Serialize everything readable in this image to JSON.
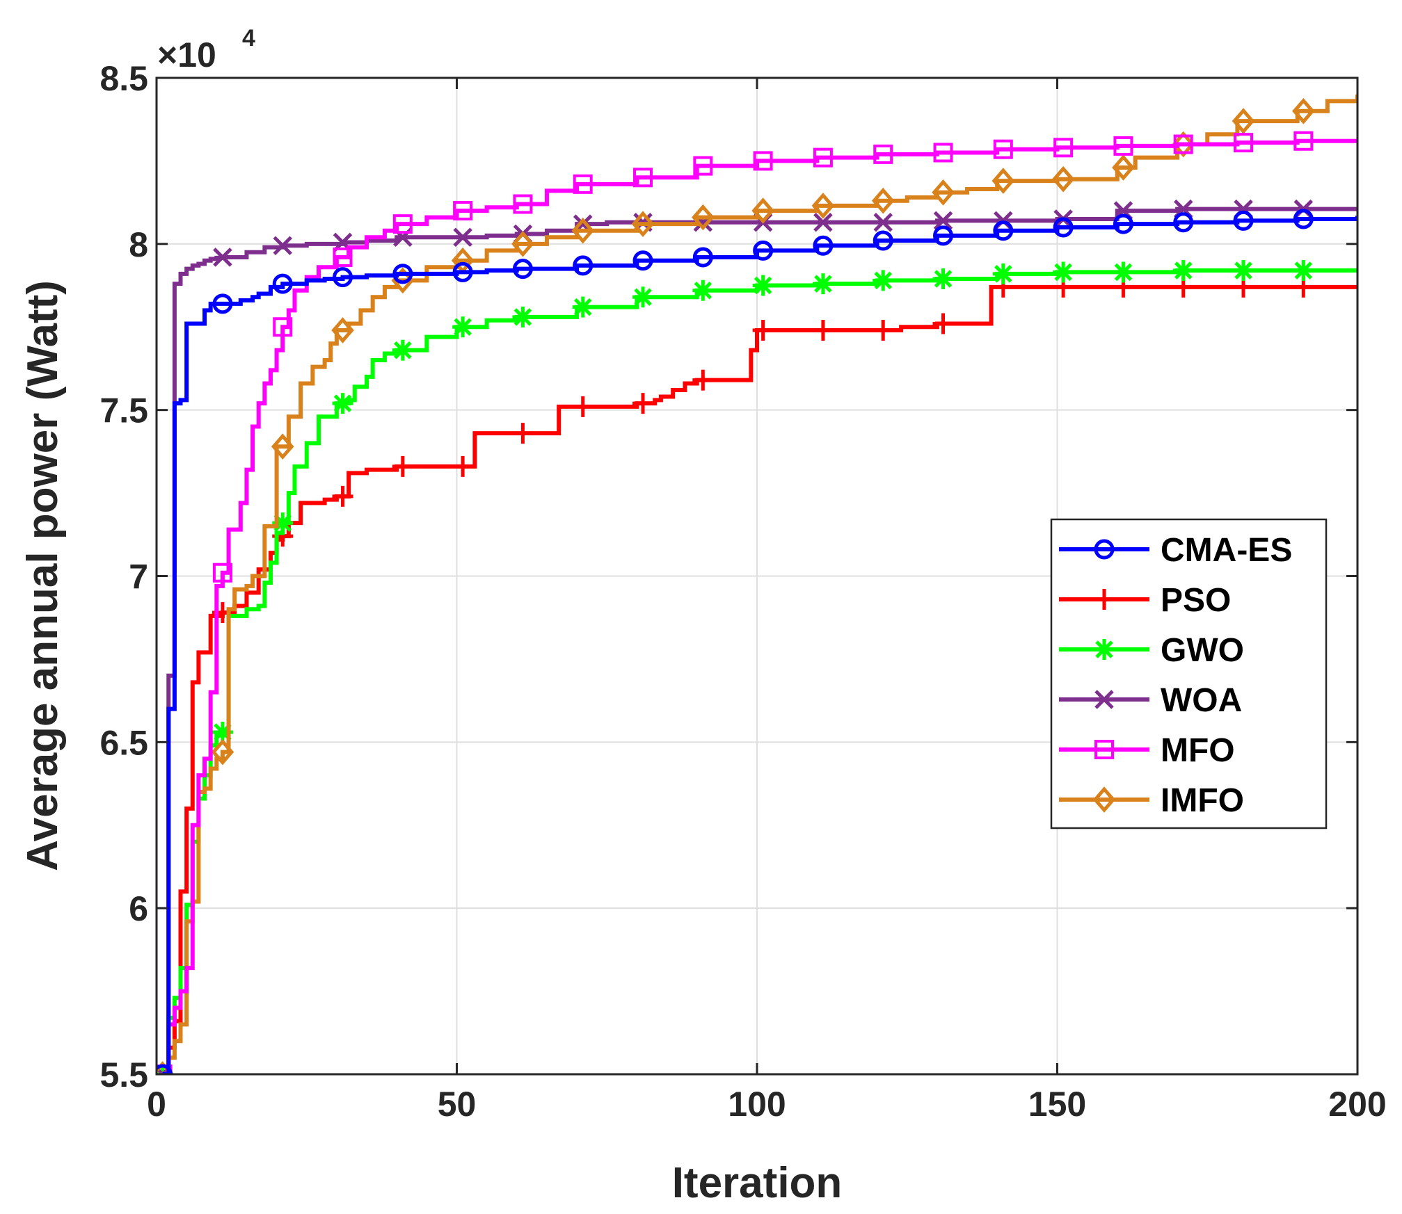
{
  "chart_data": {
    "type": "line",
    "title": "",
    "xlabel": "Iteration",
    "ylabel": "Average annual power (Watt)",
    "xlim": [
      0,
      200
    ],
    "ylim": [
      55000,
      85000
    ],
    "xticks": [
      0,
      50,
      100,
      150,
      200
    ],
    "xtick_labels": [
      "0",
      "50",
      "100",
      "150",
      "200"
    ],
    "yticks": [
      55000,
      60000,
      65000,
      70000,
      75000,
      80000,
      85000
    ],
    "ytick_labels": [
      "5.5",
      "6",
      "6.5",
      "7",
      "7.5",
      "8",
      "8.5"
    ],
    "y_exponent": {
      "base": "×10",
      "power": "4"
    },
    "grid": true,
    "legend_position": "center-right",
    "series": [
      {
        "name": "CMA-ES",
        "color": "#0000ff",
        "marker": "circle",
        "x": [
          1,
          2,
          3,
          4,
          5,
          6,
          7,
          8,
          9,
          10,
          11,
          14,
          16,
          17,
          19,
          21,
          25,
          28,
          31,
          35,
          40,
          45,
          50,
          55,
          60,
          70,
          80,
          90,
          100,
          110,
          120,
          130,
          140,
          150,
          160,
          170,
          180,
          190,
          200
        ],
        "y": [
          55000,
          66000,
          75200,
          75300,
          77600,
          77600,
          77600,
          78000,
          78200,
          78200,
          78200,
          78300,
          78400,
          78500,
          78700,
          78800,
          78900,
          78950,
          79000,
          79050,
          79100,
          79100,
          79150,
          79200,
          79250,
          79350,
          79500,
          79600,
          79800,
          79950,
          80100,
          80250,
          80400,
          80500,
          80600,
          80650,
          80700,
          80750,
          80850
        ]
      },
      {
        "name": "PSO",
        "color": "#ff0000",
        "marker": "plus",
        "x": [
          1,
          2,
          3,
          4,
          5,
          6,
          7,
          8,
          9,
          10,
          11,
          13,
          15,
          17,
          19,
          20,
          21,
          22,
          24,
          25,
          28,
          30,
          31,
          32,
          35,
          40,
          45,
          52,
          53,
          60,
          66,
          67,
          70,
          80,
          83,
          84,
          86,
          88,
          90,
          98,
          99,
          100,
          110,
          120,
          123,
          124,
          130,
          138,
          139,
          140,
          150,
          160,
          170,
          180,
          190,
          200
        ],
        "y": [
          55000,
          55800,
          56600,
          60500,
          63000,
          66800,
          67700,
          67700,
          68800,
          68800,
          68900,
          69100,
          69500,
          70200,
          70700,
          71100,
          71200,
          71600,
          72200,
          72200,
          72300,
          72400,
          72400,
          73100,
          73200,
          73300,
          73300,
          73300,
          74300,
          74300,
          74300,
          75100,
          75100,
          75200,
          75300,
          75400,
          75600,
          75800,
          75900,
          75900,
          76800,
          77400,
          77400,
          77400,
          77400,
          77500,
          77600,
          77600,
          78700,
          78700,
          78700,
          78700,
          78700,
          78700,
          78700,
          78700
        ]
      },
      {
        "name": "GWO",
        "color": "#00ff00",
        "marker": "asterisk",
        "x": [
          1,
          2,
          3,
          4,
          5,
          6,
          7,
          8,
          9,
          10,
          11,
          12,
          15,
          17,
          18,
          19,
          20,
          21,
          22,
          23,
          25,
          27,
          30,
          32,
          33,
          35,
          36,
          38,
          40,
          45,
          50,
          55,
          60,
          70,
          80,
          90,
          100,
          110,
          120,
          130,
          140,
          150,
          160,
          170,
          180,
          190,
          200
        ],
        "y": [
          55000,
          56700,
          57300,
          58200,
          60100,
          62000,
          63300,
          64000,
          64900,
          65200,
          65300,
          68800,
          69000,
          69100,
          69800,
          70400,
          71300,
          71600,
          72500,
          73300,
          74000,
          74800,
          75200,
          75300,
          75700,
          76000,
          76500,
          76700,
          76800,
          77200,
          77500,
          77700,
          77800,
          78100,
          78400,
          78600,
          78750,
          78800,
          78900,
          78950,
          79100,
          79150,
          79150,
          79200,
          79200,
          79200,
          79200
        ]
      },
      {
        "name": "WOA",
        "color": "#7e2f8e",
        "marker": "x",
        "x": [
          1,
          2,
          3,
          4,
          5,
          6,
          7,
          8,
          9,
          10,
          11,
          15,
          18,
          21,
          25,
          31,
          35,
          40,
          45,
          50,
          55,
          60,
          65,
          70,
          75,
          80,
          90,
          100,
          110,
          120,
          130,
          140,
          150,
          160,
          170,
          180,
          190,
          200
        ],
        "y": [
          55000,
          67000,
          78800,
          79100,
          79250,
          79350,
          79400,
          79500,
          79550,
          79580,
          79600,
          79750,
          79900,
          79950,
          80000,
          80050,
          80100,
          80200,
          80200,
          80200,
          80250,
          80300,
          80400,
          80600,
          80650,
          80650,
          80650,
          80650,
          80650,
          80650,
          80700,
          80700,
          80750,
          81000,
          81050,
          81050,
          81050,
          81100
        ]
      },
      {
        "name": "MFO",
        "color": "#ff00ff",
        "marker": "square",
        "x": [
          1,
          2,
          3,
          4,
          5,
          6,
          7,
          8,
          9,
          10,
          11,
          12,
          14,
          15,
          16,
          17,
          18,
          19,
          20,
          21,
          22,
          23,
          25,
          27,
          30,
          32,
          35,
          38,
          40,
          45,
          50,
          55,
          60,
          65,
          70,
          80,
          90,
          100,
          110,
          120,
          130,
          140,
          150,
          160,
          170,
          180,
          190,
          200
        ],
        "y": [
          55000,
          56500,
          57000,
          57500,
          58200,
          62500,
          64000,
          64500,
          66500,
          69700,
          70100,
          71400,
          72200,
          73200,
          74500,
          75200,
          75800,
          76200,
          76800,
          77500,
          78000,
          78600,
          79000,
          79300,
          79600,
          79900,
          80200,
          80400,
          80600,
          80800,
          81000,
          81100,
          81200,
          81600,
          81800,
          82000,
          82350,
          82500,
          82600,
          82700,
          82750,
          82850,
          82900,
          82950,
          83000,
          83050,
          83100,
          83150
        ]
      },
      {
        "name": "IMFO",
        "color": "#d9811a",
        "marker": "diamond",
        "x": [
          1,
          2,
          3,
          4,
          5,
          6,
          7,
          8,
          9,
          10,
          11,
          12,
          13,
          15,
          16,
          18,
          20,
          22,
          24,
          26,
          28,
          29,
          30,
          32,
          34,
          36,
          38,
          40,
          45,
          50,
          55,
          60,
          65,
          70,
          80,
          90,
          100,
          110,
          120,
          125,
          130,
          135,
          140,
          150,
          155,
          160,
          163,
          170,
          175,
          180,
          190,
          195,
          200
        ],
        "y": [
          55000,
          55500,
          56000,
          56500,
          59600,
          60200,
          63500,
          63600,
          64200,
          64500,
          64700,
          69000,
          69600,
          69700,
          70000,
          71500,
          73900,
          74800,
          75800,
          76300,
          76500,
          77000,
          77400,
          77600,
          78000,
          78400,
          78700,
          78900,
          79300,
          79500,
          79800,
          80000,
          80200,
          80400,
          80600,
          80800,
          81000,
          81150,
          81300,
          81400,
          81550,
          81650,
          81900,
          81950,
          81950,
          82300,
          82600,
          83000,
          83300,
          83700,
          84000,
          84300,
          84500
        ]
      }
    ]
  }
}
